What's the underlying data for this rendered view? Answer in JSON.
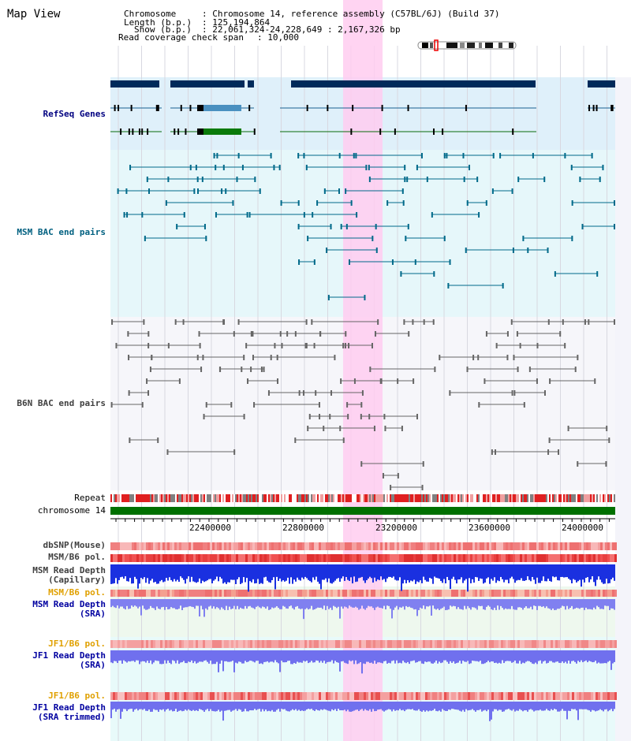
{
  "title": "Map View",
  "info": {
    "chromosome_label": "Chromosome",
    "chromosome_value": ": Chromosome 14, reference assembly (C57BL/6J) (Build 37)",
    "length_label": "Length (b.p.)",
    "length_value": ": 125,194,864",
    "show_label": "Show (b.p.)",
    "show_value": ": 22,061,324-24,228,649 : 2,167,326 bp",
    "coverage_label": "Read coverage check span",
    "coverage_value": ": 10,000"
  },
  "tracks": {
    "refseq": "RefSeq Genes",
    "msm_bac": "MSM BAC end pairs",
    "b6n_bac": "B6N BAC end pairs",
    "repeat": "Repeat",
    "chromosome": "chromosome 14",
    "dbsnp": "dbSNP(Mouse)",
    "msm_b6_pol": "MSM/B6 pol.",
    "msm_depth_cap_1": "MSM Read Depth",
    "msm_depth_cap_2": "(Capillary)",
    "msm_b6_pol_sra": "MSM/B6 pol.",
    "msm_depth_sra_1": "MSM Read Depth",
    "msm_depth_sra_2": "(SRA)",
    "jf1_b6_pol": "JF1/B6 pol.",
    "jf1_depth_1": "JF1 Read Depth",
    "jf1_depth_2": "(SRA)",
    "jf1_b6_pol_trim": "JF1/B6 pol.",
    "jf1_trim_1": "JF1 Read Depth",
    "jf1_trim_2": "(SRA trimmed)"
  },
  "axis_ticks": [
    "22400000",
    "22800000",
    "23200000",
    "23600000",
    "24000000"
  ],
  "colors": {
    "refseq_label": "#000080",
    "msm_label": "#006080",
    "b6n_label": "#404040",
    "orange_label": "#e0a000",
    "blue_label": "#0000a0",
    "highlight": "#ffccf0"
  }
}
